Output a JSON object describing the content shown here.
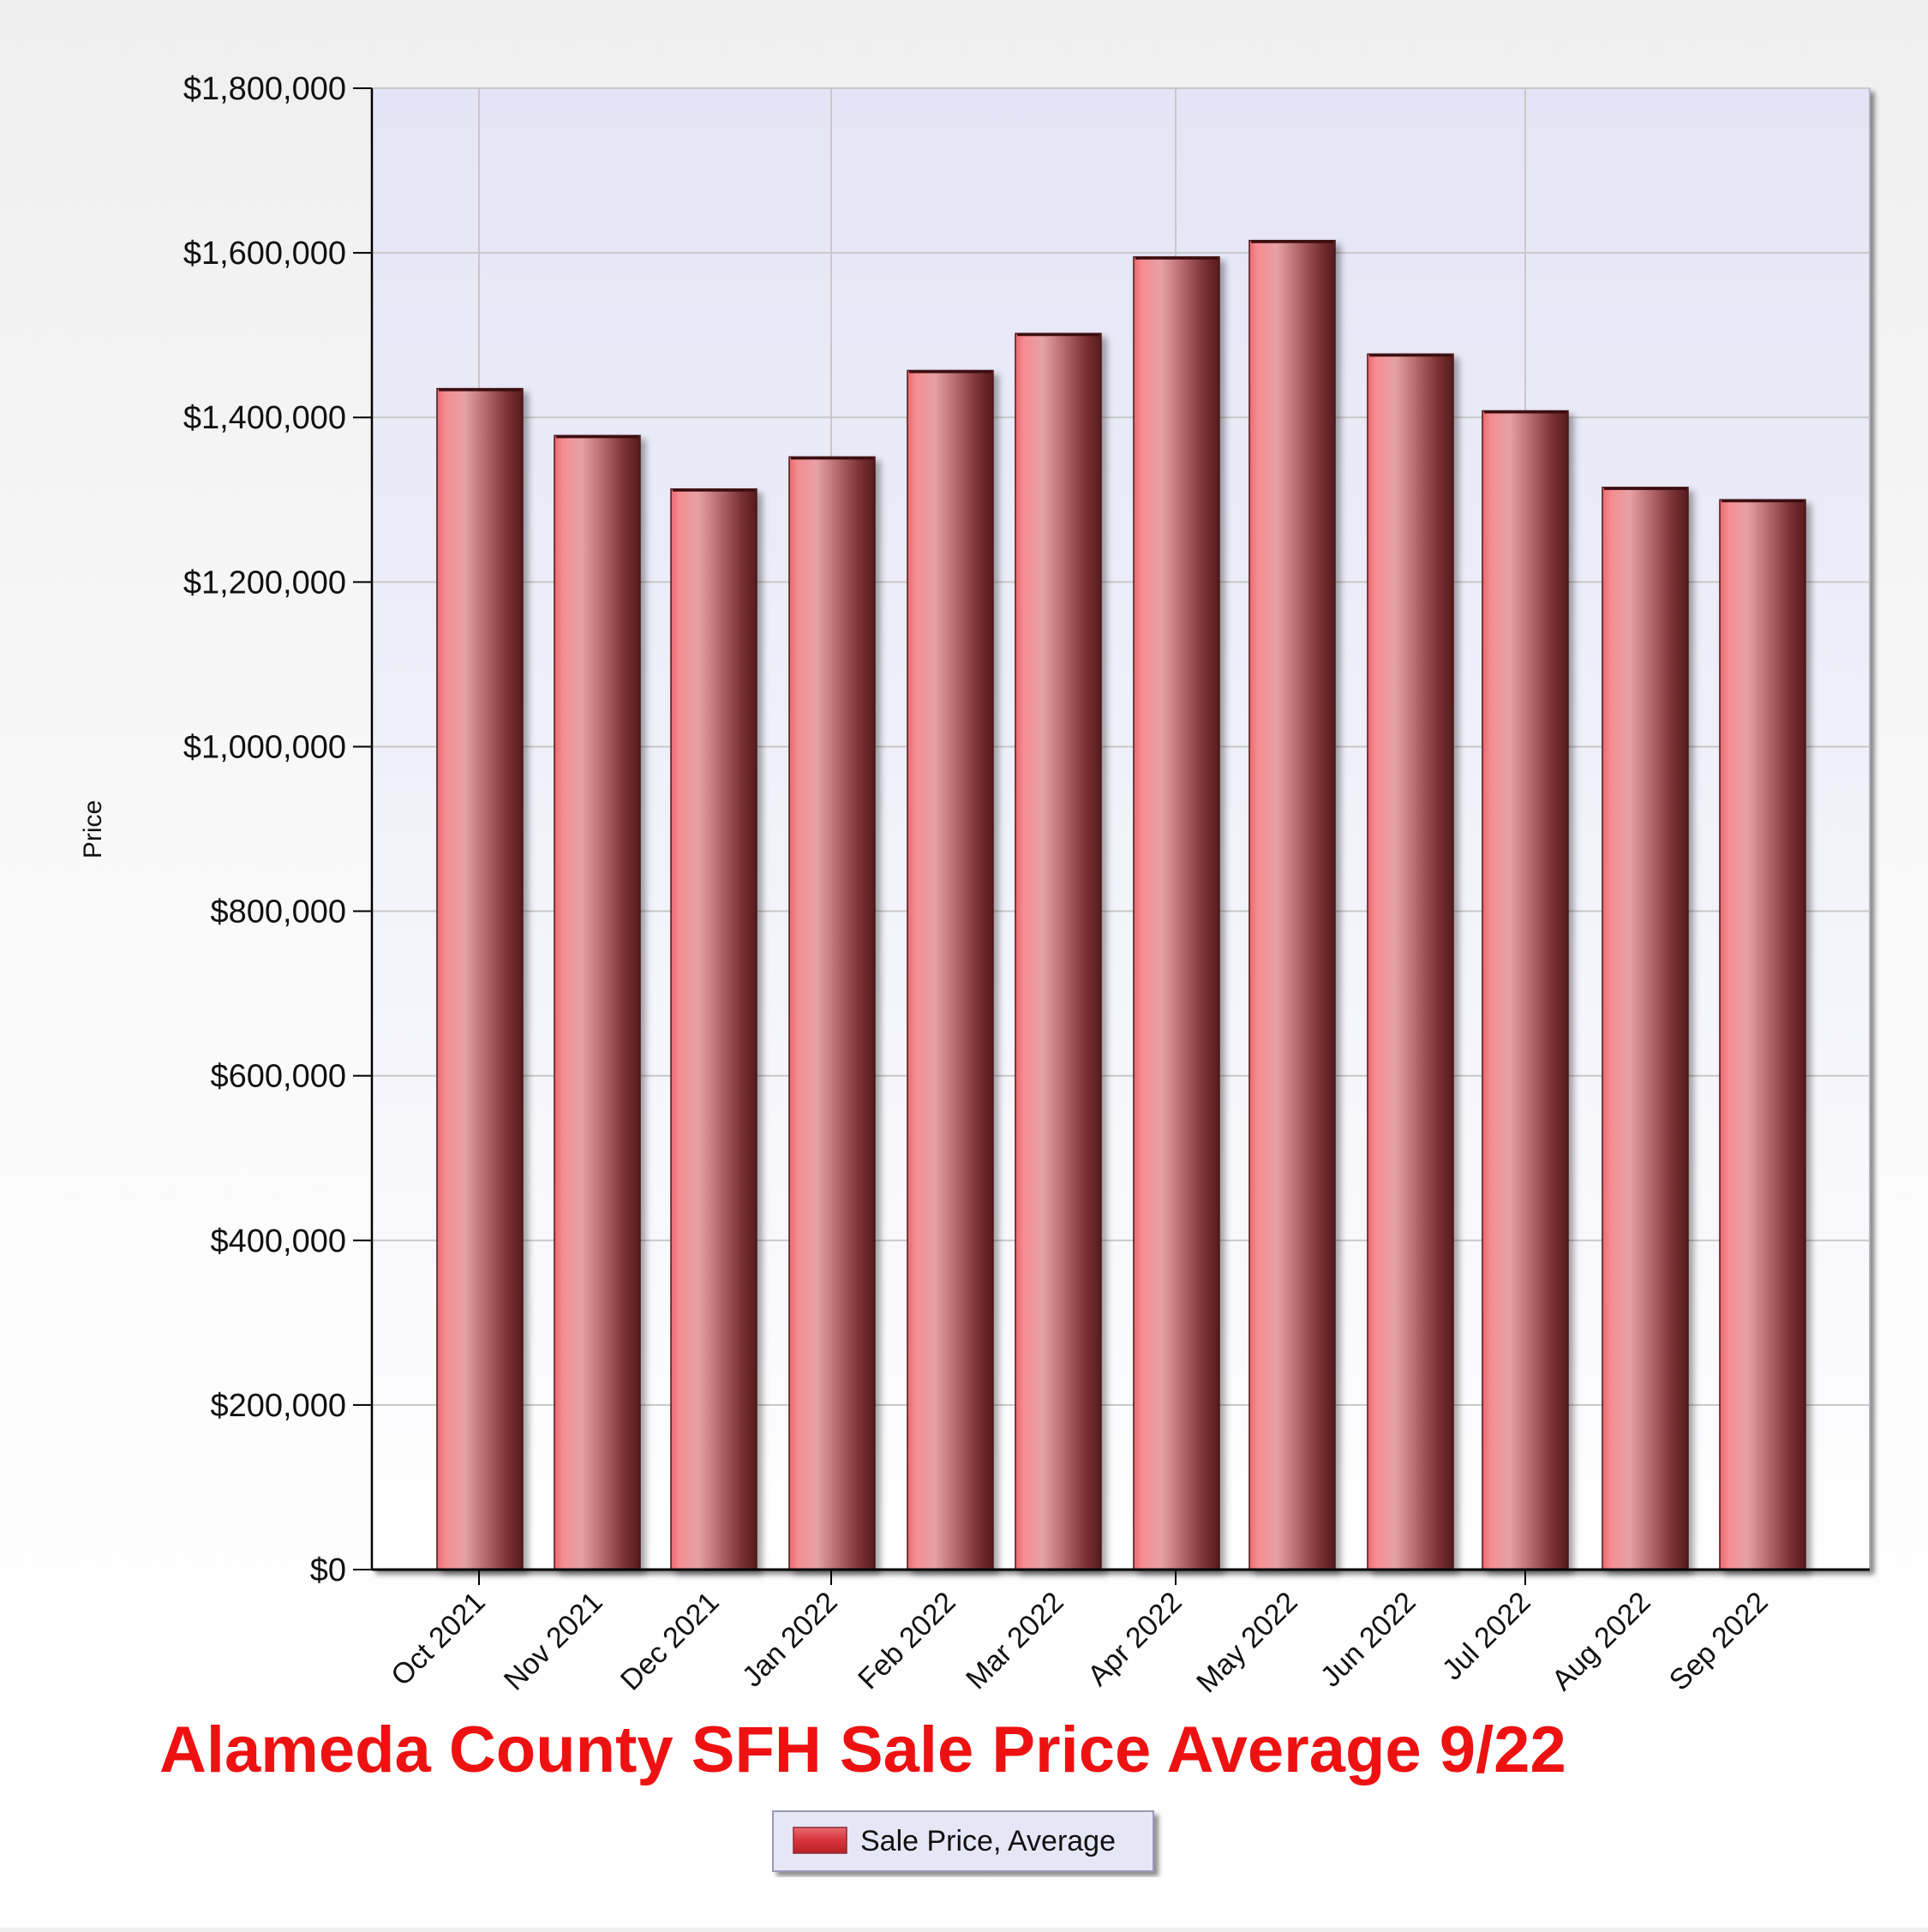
{
  "chart_data": {
    "type": "bar",
    "title": "Alameda County SFH Sale Price Average 9/22",
    "xlabel": "",
    "ylabel": "Price",
    "ylim": [
      0,
      1800000
    ],
    "y_ticks": [
      0,
      200000,
      400000,
      600000,
      800000,
      1000000,
      1200000,
      1400000,
      1600000,
      1800000
    ],
    "y_tick_labels": [
      "$0",
      "$200,000",
      "$400,000",
      "$600,000",
      "$800,000",
      "$1,000,000",
      "$1,200,000",
      "$1,400,000",
      "$1,600,000",
      "$1,800,000"
    ],
    "categories": [
      "Oct 2021",
      "Nov 2021",
      "Dec 2021",
      "Jan 2022",
      "Feb 2022",
      "Mar 2022",
      "Apr 2022",
      "May 2022",
      "Jun 2022",
      "Jul 2022",
      "Aug 2022",
      "Sep 2022"
    ],
    "series": [
      {
        "name": "Sale Price, Average",
        "values": [
          1435000,
          1378000,
          1313000,
          1352000,
          1457000,
          1502000,
          1595000,
          1615000,
          1477000,
          1408000,
          1315000,
          1300000
        ]
      }
    ],
    "grid": true,
    "legend_position": "bottom-center",
    "colors": {
      "bar_light": "#f07d83",
      "bar_highlight": "#e8a4a8",
      "bar_mid": "#c06a70",
      "bar_dark": "#5a1d1f",
      "title": "#ee1111",
      "plot_background_top": "#e4e4f6",
      "plot_background_bottom": "#ffffff",
      "gridline": "#c8c8c8"
    }
  }
}
